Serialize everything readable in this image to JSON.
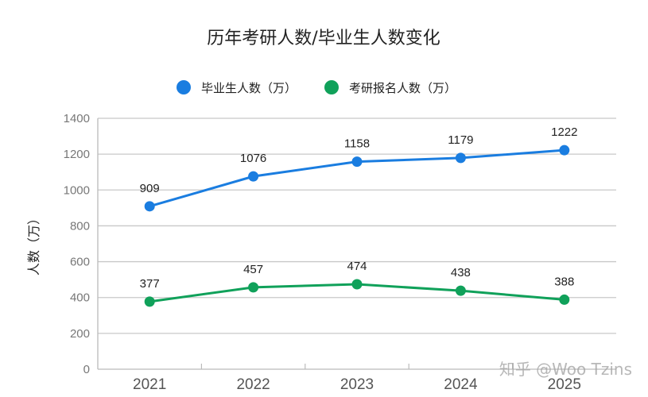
{
  "chart_data": {
    "type": "line",
    "title": "历年考研人数/毕业生人数变化",
    "ylabel": "人数（万）",
    "xlabel": "",
    "categories": [
      "2021",
      "2022",
      "2023",
      "2024",
      "2025"
    ],
    "ylim": [
      0,
      1400
    ],
    "yticks": [
      0,
      200,
      400,
      600,
      800,
      1000,
      1200,
      1400
    ],
    "grid": true,
    "legend_position": "top",
    "series": [
      {
        "name": "毕业生人数（万）",
        "color": "#1a7de0",
        "values": [
          909,
          1076,
          1158,
          1179,
          1222
        ]
      },
      {
        "name": "考研报名人数（万）",
        "color": "#10a15a",
        "values": [
          377,
          457,
          474,
          438,
          388
        ]
      }
    ]
  },
  "watermark": "知乎 @Woo Tzins"
}
